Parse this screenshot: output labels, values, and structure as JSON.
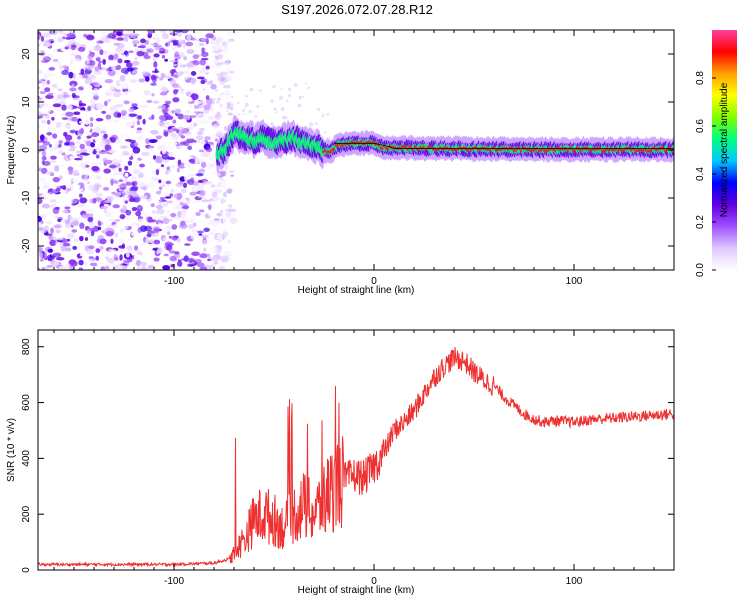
{
  "title": "S197.2026.072.07.28.R12",
  "chart_data": [
    {
      "type": "heatmap",
      "name": "spectrogram",
      "xlabel": "Height of straight line (km)",
      "ylabel": "Frequency (Hz)",
      "xlim": [
        -168,
        150
      ],
      "ylim": [
        -25,
        25
      ],
      "xticks": [
        -100,
        0,
        100
      ],
      "yticks": [
        -20,
        -10,
        0,
        10,
        20
      ],
      "colorbar": {
        "label": "Normalized spectral amplitude",
        "range": [
          0,
          1
        ],
        "ticks": [
          0.0,
          0.2,
          0.4,
          0.6,
          0.8
        ],
        "colormap": [
          "#ffffff",
          "#e0c8ff",
          "#a050ff",
          "#6000e0",
          "#0000ff",
          "#00c8ff",
          "#00ff80",
          "#80ff00",
          "#ffff00",
          "#ffa000",
          "#ff0000",
          "#ff40a0"
        ]
      },
      "noise_region_x": [
        -168,
        -70
      ],
      "ridge": {
        "x": [
          -78,
          -74,
          -70,
          -66,
          -60,
          -55,
          -50,
          -45,
          -40,
          -35,
          -30,
          -26,
          -22,
          -18,
          -14,
          -10,
          -5,
          0,
          5,
          10,
          20,
          30,
          40,
          50,
          60,
          70,
          80,
          90,
          100,
          110,
          120,
          130,
          140,
          150
        ],
        "freq": [
          -1,
          0.5,
          3.5,
          3,
          2,
          2.5,
          1.5,
          2,
          2.5,
          1.5,
          1,
          0,
          -0.5,
          1,
          1.2,
          1.5,
          1.4,
          1.4,
          0.5,
          0.5,
          0.4,
          0.3,
          0.3,
          0.2,
          0.2,
          0.1,
          0.1,
          0.1,
          0.1,
          0.1,
          0.1,
          0.1,
          0.1,
          0.1
        ]
      }
    },
    {
      "type": "line",
      "name": "snr",
      "xlabel": "Height of straight line (km)",
      "ylabel": "SNR (10 * v/v)",
      "xlim": [
        -168,
        150
      ],
      "ylim": [
        0,
        860
      ],
      "xticks": [
        -100,
        0,
        100
      ],
      "yticks": [
        0,
        200,
        400,
        600,
        800
      ],
      "color": "#ee3030",
      "series": [
        {
          "name": "SNR envelope",
          "x": [
            -168,
            -100,
            -80,
            -72,
            -68,
            -64,
            -60,
            -55,
            -50,
            -45,
            -40,
            -35,
            -30,
            -25,
            -20,
            -15,
            -10,
            -5,
            0,
            5,
            10,
            15,
            20,
            25,
            30,
            35,
            40,
            45,
            50,
            55,
            60,
            65,
            70,
            75,
            80,
            85,
            90,
            100,
            110,
            120,
            130,
            140,
            150
          ],
          "values": [
            20,
            20,
            25,
            40,
            80,
            120,
            180,
            200,
            180,
            150,
            200,
            230,
            200,
            250,
            300,
            320,
            340,
            330,
            370,
            420,
            500,
            530,
            570,
            630,
            690,
            730,
            760,
            750,
            710,
            680,
            660,
            620,
            590,
            560,
            540,
            530,
            535,
            530,
            540,
            545,
            550,
            555,
            560
          ]
        }
      ]
    }
  ]
}
